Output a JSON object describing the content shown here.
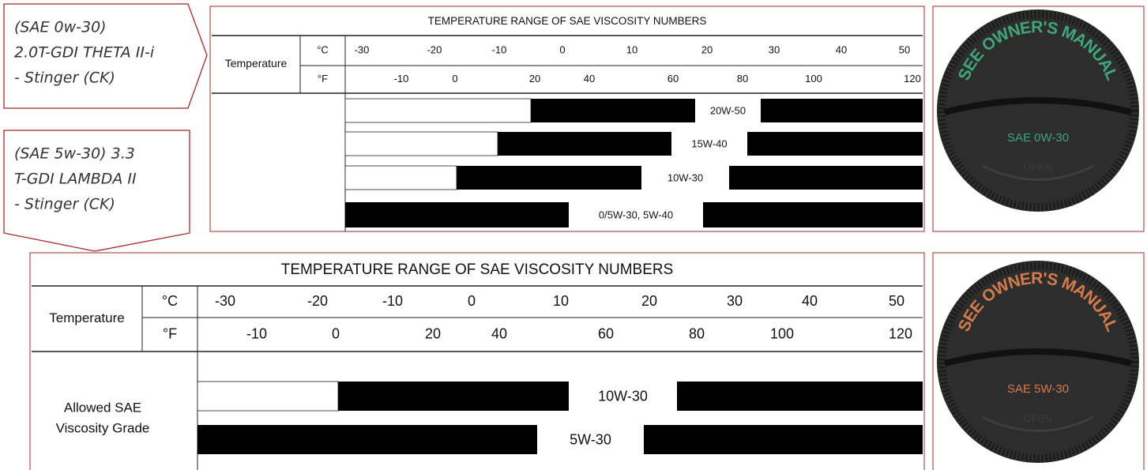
{
  "callouts": [
    {
      "lines": [
        "(SAE 0w-30)",
        "2.0T-GDI THETA II-i",
        "- Stinger (CK)"
      ]
    },
    {
      "lines": [
        "(SAE 5w-30) 3.3",
        "T-GDI LAMBDA II",
        "- Stinger (CK)"
      ]
    }
  ],
  "tables": [
    {
      "title": "TEMPERATURE RANGE OF SAE VISCOSITY NUMBERS",
      "row_label": "Temperature",
      "celsius_unit": "°C",
      "fahrenheit_unit": "°F",
      "celsius": [
        "-30",
        "-20",
        "-10",
        "0",
        "10",
        "20",
        "30",
        "40",
        "50"
      ],
      "fahrenheit": [
        "-10",
        "0",
        "20",
        "40",
        "60",
        "80",
        "100",
        "120"
      ],
      "grades": [
        "20W-50",
        "15W-40",
        "10W-30",
        "0/5W-30,  5W-40"
      ]
    },
    {
      "title": "TEMPERATURE RANGE OF SAE VISCOSITY NUMBERS",
      "row_label": "Temperature",
      "celsius_unit": "°C",
      "fahrenheit_unit": "°F",
      "celsius": [
        "-30",
        "-20",
        "-10",
        "0",
        "10",
        "20",
        "30",
        "40",
        "50"
      ],
      "fahrenheit": [
        "-10",
        "0",
        "20",
        "40",
        "60",
        "80",
        "100",
        "120"
      ],
      "grades": [
        "10W-30",
        "5W-30"
      ],
      "grade_label_lines": [
        "Allowed SAE",
        "Viscosity Grade"
      ]
    }
  ],
  "caps": [
    {
      "ring_text": "SEE OWNER'S MANUAL",
      "grade": "SAE 0W-30",
      "open": "OPEN"
    },
    {
      "ring_text": "SEE OWNER'S MANUAL",
      "grade": "SAE 5W-30",
      "open": "OPEN"
    }
  ]
}
